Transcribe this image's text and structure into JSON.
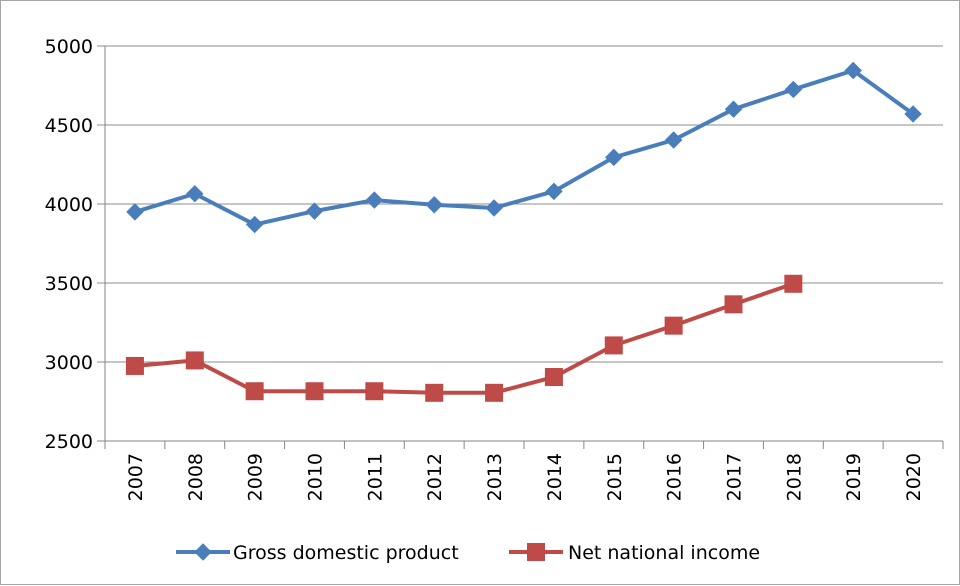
{
  "chart_data": {
    "type": "line",
    "categories": [
      "2007",
      "2008",
      "2009",
      "2010",
      "2011",
      "2012",
      "2013",
      "2014",
      "2015",
      "2016",
      "2017",
      "2018",
      "2019",
      "2020"
    ],
    "series": [
      {
        "name": "Gross domestic product",
        "color": "#4a7ebb",
        "marker": "diamond",
        "values": [
          3950,
          4065,
          3870,
          3955,
          4025,
          3995,
          3975,
          4080,
          4295,
          4405,
          4600,
          4725,
          4845,
          4570
        ]
      },
      {
        "name": "Net national income",
        "color": "#be4b48",
        "marker": "square",
        "values": [
          2975,
          3010,
          2815,
          2815,
          2815,
          2805,
          2805,
          2905,
          3105,
          3230,
          3365,
          3495,
          null,
          null
        ]
      }
    ],
    "ylim": [
      2500,
      5000
    ],
    "yticks": [
      2500,
      3000,
      3500,
      4000,
      4500,
      5000
    ],
    "title": "",
    "xlabel": "",
    "ylabel": "",
    "grid": "horizontal",
    "legend_position": "bottom"
  }
}
